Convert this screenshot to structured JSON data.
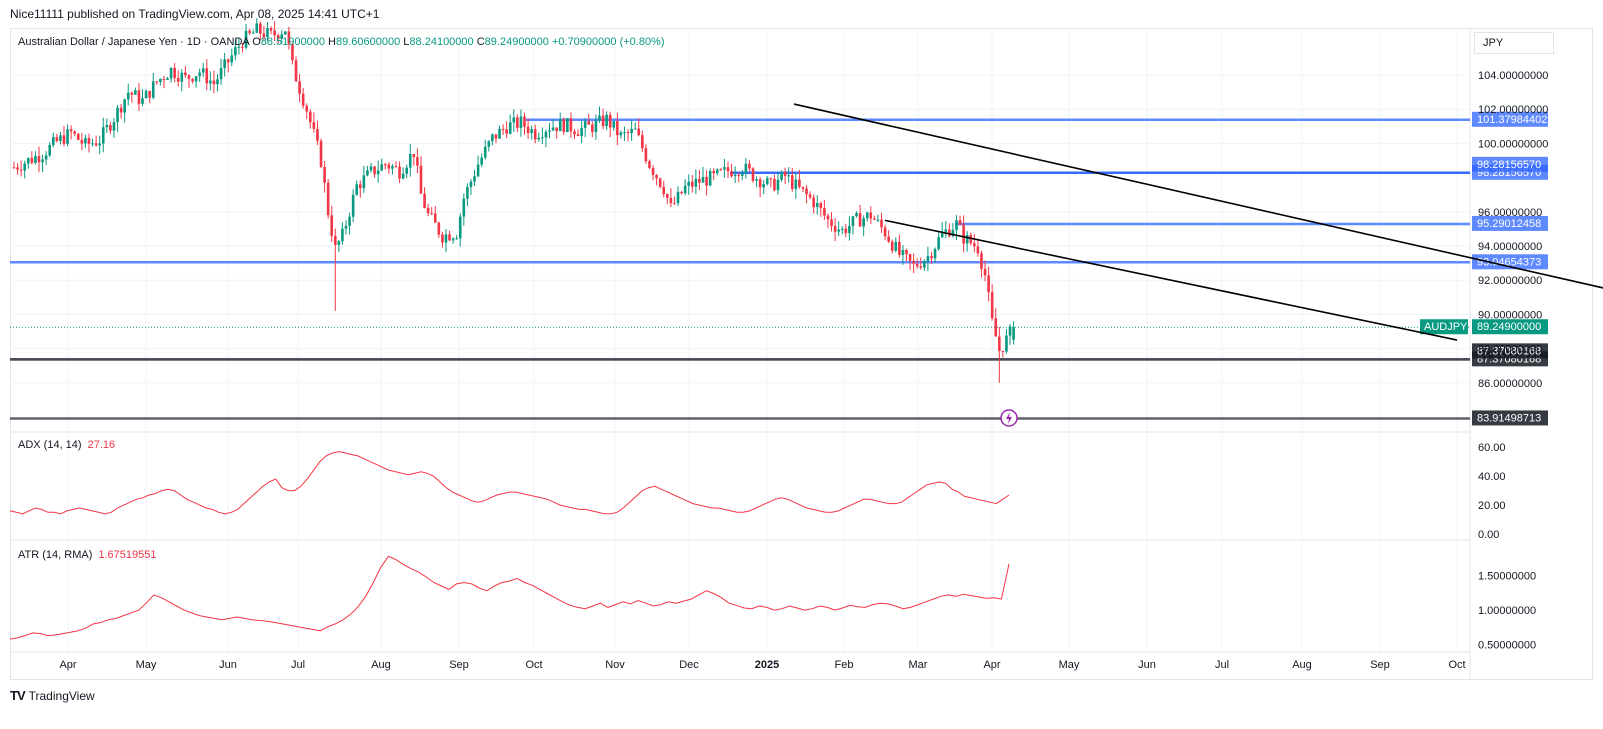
{
  "header": {
    "published_text": "Nice11111 published on TradingView.com, Apr 08, 2025 14:41 UTC+1"
  },
  "legend": {
    "symbol": "Australian Dollar / Japanese Yen · 1D · OANDA",
    "open_label": "O",
    "open": "88.51900000",
    "high_label": "H",
    "high": "89.60600000",
    "low_label": "L",
    "low": "88.24100000",
    "close_label": "C",
    "close": "89.24900000",
    "change": "+0.70900000 (+0.80%)"
  },
  "currency": "JPY",
  "footer": {
    "brand": "TradingView"
  },
  "colors": {
    "up": "#089981",
    "down": "#f23645",
    "level_blue": "#2962ff",
    "level_dark": "#434651",
    "indicator": "#f23645",
    "channel": "#000000"
  },
  "chart_data": [
    {
      "type": "candlestick",
      "title": "Australian Dollar / Japanese Yen · 1D · OANDA",
      "ylim": [
        82.8,
        106.4
      ],
      "y_ticks": [
        "104.00000000",
        "102.00000000",
        "100.00000000",
        "96.00000000",
        "94.00000000",
        "92.00000000",
        "90.00000000",
        "88.00000000",
        "86.00000000"
      ],
      "x_ticks": [
        "Apr",
        "May",
        "Jun",
        "Jul",
        "Aug",
        "Sep",
        "Oct",
        "Nov",
        "Dec",
        "2025",
        "Feb",
        "Mar",
        "Apr",
        "May",
        "Jun",
        "Jul",
        "Aug",
        "Sep",
        "Oct"
      ],
      "price_path": [
        [
          0,
          98.6
        ],
        [
          4,
          99.0
        ],
        [
          8,
          99.4
        ],
        [
          12,
          100.1
        ],
        [
          16,
          100.6
        ],
        [
          20,
          99.9
        ],
        [
          24,
          100.2
        ],
        [
          28,
          101.5
        ],
        [
          32,
          103.0
        ],
        [
          36,
          102.5
        ],
        [
          40,
          103.6
        ],
        [
          44,
          104.3
        ],
        [
          48,
          103.8
        ],
        [
          52,
          104.2
        ],
        [
          56,
          103.5
        ],
        [
          60,
          104.8
        ],
        [
          64,
          106.0
        ],
        [
          68,
          106.6
        ],
        [
          72,
          106.3
        ],
        [
          76,
          106.7
        ],
        [
          78,
          104.5
        ],
        [
          82,
          102.0
        ],
        [
          86,
          99.0
        ],
        [
          88,
          96.0
        ],
        [
          90,
          93.8
        ],
        [
          92,
          94.6
        ],
        [
          96,
          97.5
        ],
        [
          100,
          98.3
        ],
        [
          104,
          98.8
        ],
        [
          108,
          98.4
        ],
        [
          112,
          99.5
        ],
        [
          114,
          97.0
        ],
        [
          116,
          95.8
        ],
        [
          120,
          94.6
        ],
        [
          124,
          94.8
        ],
        [
          126,
          96.8
        ],
        [
          130,
          98.8
        ],
        [
          134,
          100.3
        ],
        [
          138,
          101.0
        ],
        [
          142,
          101.2
        ],
        [
          146,
          100.6
        ],
        [
          150,
          101.0
        ],
        [
          154,
          101.1
        ],
        [
          158,
          100.8
        ],
        [
          162,
          101.0
        ],
        [
          166,
          101.4
        ],
        [
          170,
          100.4
        ],
        [
          174,
          100.7
        ],
        [
          178,
          98.8
        ],
        [
          182,
          97.4
        ],
        [
          184,
          96.2
        ],
        [
          188,
          97.4
        ],
        [
          192,
          97.8
        ],
        [
          196,
          98.0
        ],
        [
          200,
          98.4
        ],
        [
          204,
          98.6
        ],
        [
          208,
          98.0
        ],
        [
          212,
          97.5
        ],
        [
          216,
          98.1
        ],
        [
          220,
          97.3
        ],
        [
          224,
          96.6
        ],
        [
          228,
          95.5
        ],
        [
          232,
          94.9
        ],
        [
          236,
          95.5
        ],
        [
          240,
          95.8
        ],
        [
          244,
          94.8
        ],
        [
          248,
          93.5
        ],
        [
          252,
          92.8
        ],
        [
          256,
          93.4
        ],
        [
          260,
          94.7
        ],
        [
          264,
          95.3
        ],
        [
          266,
          94.5
        ],
        [
          270,
          93.9
        ],
        [
          272,
          92.3
        ],
        [
          274,
          89.5
        ],
        [
          276,
          87.9
        ],
        [
          278,
          88.52
        ],
        [
          280,
          89.25
        ]
      ],
      "annotations": [
        {
          "type": "resistance",
          "value": 101.37984402,
          "label": "101.37984402"
        },
        {
          "type": "resistance",
          "value": 98.2815657,
          "label": "98.28156570"
        },
        {
          "type": "resistance",
          "value": 98.2815657,
          "label": "98.28156570"
        },
        {
          "type": "resistance",
          "value": 95.29012458,
          "label": "95.29012458"
        },
        {
          "type": "support",
          "value": 93.04654373,
          "label": "93.04654373"
        },
        {
          "type": "support",
          "value": 87.37080168,
          "label": "87.37080168"
        },
        {
          "type": "support",
          "value": 87.37080168,
          "label": "87.37080168"
        },
        {
          "type": "support",
          "value": 83.91498713,
          "label": "83.91498713"
        }
      ],
      "last_price": {
        "label": "AUDJPY",
        "value": "89.24900000"
      },
      "channel": {
        "upper": [
          [
            2024.86,
            102.3
          ],
          [
            2025.52,
            90.9
          ]
        ],
        "lower": [
          [
            2024.93,
            95.5
          ],
          [
            2025.37,
            88.5
          ]
        ]
      }
    },
    {
      "type": "line",
      "title": "ADX (14, 14)",
      "latest": "27.16",
      "ylim": [
        0,
        65
      ],
      "y_ticks": [
        "60.00",
        "40.00",
        "20.00",
        "0.00"
      ],
      "series": [
        {
          "values": [
            16,
            15,
            14,
            16,
            18,
            17,
            15,
            15,
            14,
            16,
            17,
            18,
            17,
            16,
            15,
            14,
            15,
            18,
            20,
            22,
            24,
            25,
            27,
            28,
            30,
            31,
            30,
            27,
            24,
            22,
            20,
            18,
            17,
            15,
            14,
            15,
            17,
            21,
            25,
            29,
            33,
            36,
            38,
            32,
            30,
            30,
            33,
            38,
            44,
            50,
            54,
            56,
            57,
            56,
            55,
            54,
            52,
            50,
            48,
            46,
            44,
            43,
            42,
            41,
            42,
            43,
            42,
            40,
            36,
            32,
            29,
            27,
            25,
            23,
            22,
            23,
            25,
            27,
            28,
            29,
            29,
            28,
            27,
            26,
            25,
            24,
            22,
            20,
            19,
            18,
            17,
            17,
            16,
            15,
            14,
            14,
            15,
            18,
            22,
            26,
            30,
            32,
            33,
            31,
            29,
            27,
            25,
            23,
            21,
            20,
            19,
            18,
            18,
            17,
            16,
            15,
            15,
            16,
            18,
            20,
            22,
            24,
            25,
            24,
            22,
            20,
            18,
            17,
            16,
            15,
            15,
            16,
            18,
            20,
            22,
            24,
            24,
            23,
            22,
            21,
            21,
            22,
            25,
            28,
            31,
            34,
            35,
            36,
            35,
            31,
            29,
            26,
            25,
            24,
            23,
            22,
            21,
            24,
            27
          ]
        }
      ]
    },
    {
      "type": "line",
      "title": "ATR (14, RMA)",
      "latest": "1.67519551",
      "ylim": [
        0.48,
        1.9
      ],
      "y_ticks": [
        "1.50000000",
        "1.00000000",
        "0.50000000"
      ],
      "series": [
        {
          "values": [
            0.58,
            0.6,
            0.63,
            0.67,
            0.66,
            0.63,
            0.64,
            0.66,
            0.68,
            0.7,
            0.74,
            0.8,
            0.82,
            0.86,
            0.88,
            0.92,
            0.96,
            1.0,
            1.1,
            1.22,
            1.18,
            1.12,
            1.06,
            1.0,
            0.96,
            0.92,
            0.9,
            0.88,
            0.86,
            0.88,
            0.9,
            0.88,
            0.86,
            0.85,
            0.84,
            0.82,
            0.8,
            0.78,
            0.76,
            0.74,
            0.72,
            0.7,
            0.76,
            0.8,
            0.86,
            0.94,
            1.05,
            1.2,
            1.4,
            1.62,
            1.78,
            1.73,
            1.66,
            1.6,
            1.55,
            1.48,
            1.4,
            1.35,
            1.3,
            1.38,
            1.4,
            1.38,
            1.32,
            1.28,
            1.35,
            1.4,
            1.42,
            1.46,
            1.4,
            1.36,
            1.3,
            1.24,
            1.18,
            1.12,
            1.07,
            1.04,
            1.02,
            1.06,
            1.1,
            1.04,
            1.08,
            1.12,
            1.09,
            1.14,
            1.1,
            1.06,
            1.08,
            1.12,
            1.1,
            1.13,
            1.16,
            1.22,
            1.28,
            1.24,
            1.18,
            1.1,
            1.07,
            1.03,
            1.02,
            1.06,
            1.04,
            1.0,
            1.02,
            1.06,
            1.03,
            1.0,
            1.02,
            1.06,
            1.04,
            1.0,
            1.03,
            1.07,
            1.05,
            1.04,
            1.08,
            1.1,
            1.09,
            1.06,
            1.02,
            1.04,
            1.08,
            1.12,
            1.16,
            1.2,
            1.22,
            1.2,
            1.23,
            1.21,
            1.19,
            1.17,
            1.18,
            1.16,
            1.67
          ]
        }
      ]
    }
  ]
}
